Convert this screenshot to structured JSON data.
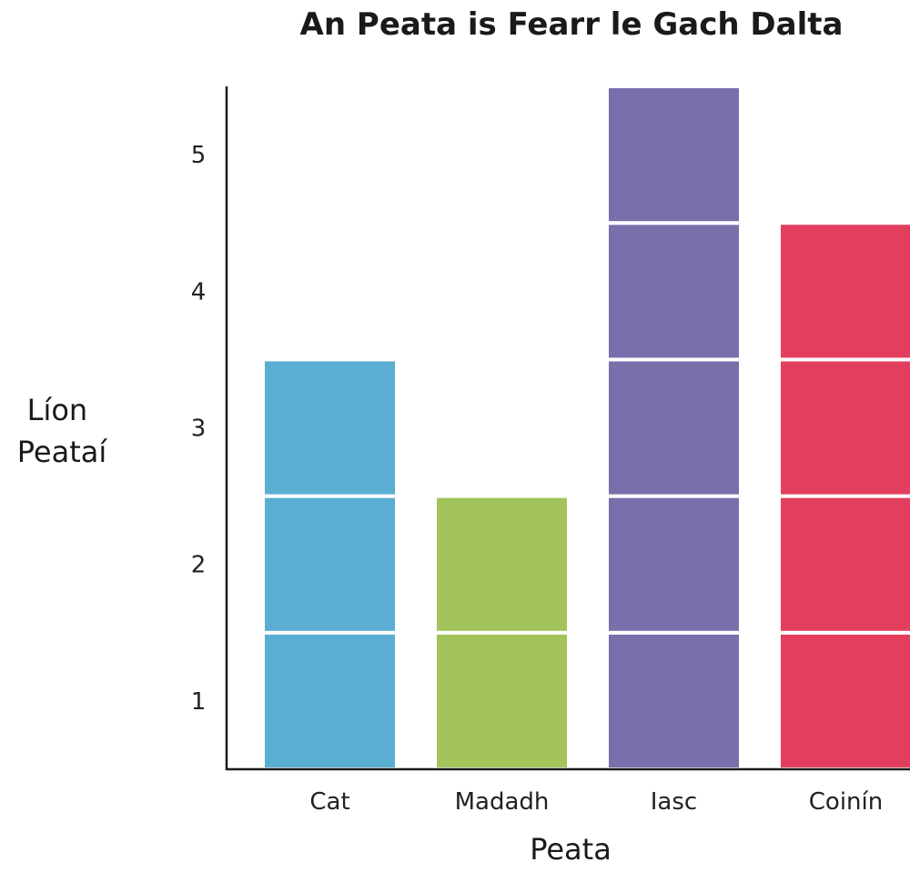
{
  "chart_data": {
    "type": "bar",
    "title": "An Peata is Fearr le Gach Dalta",
    "xlabel": "Peata",
    "ylabel": "Líon Peataí",
    "ylabel_lines": [
      "Líon",
      "Peataí"
    ],
    "categories": [
      "Cat",
      "Madadh",
      "Iasc",
      "Coinín"
    ],
    "values": [
      3,
      2,
      5,
      4
    ],
    "colors": [
      "#5aaed1",
      "#a2c45a",
      "#7a6eab",
      "#e43e5f"
    ],
    "yticks": [
      1,
      2,
      3,
      4,
      5
    ],
    "ylim": [
      0.5,
      5.5
    ],
    "grid": false,
    "legend": "none"
  }
}
